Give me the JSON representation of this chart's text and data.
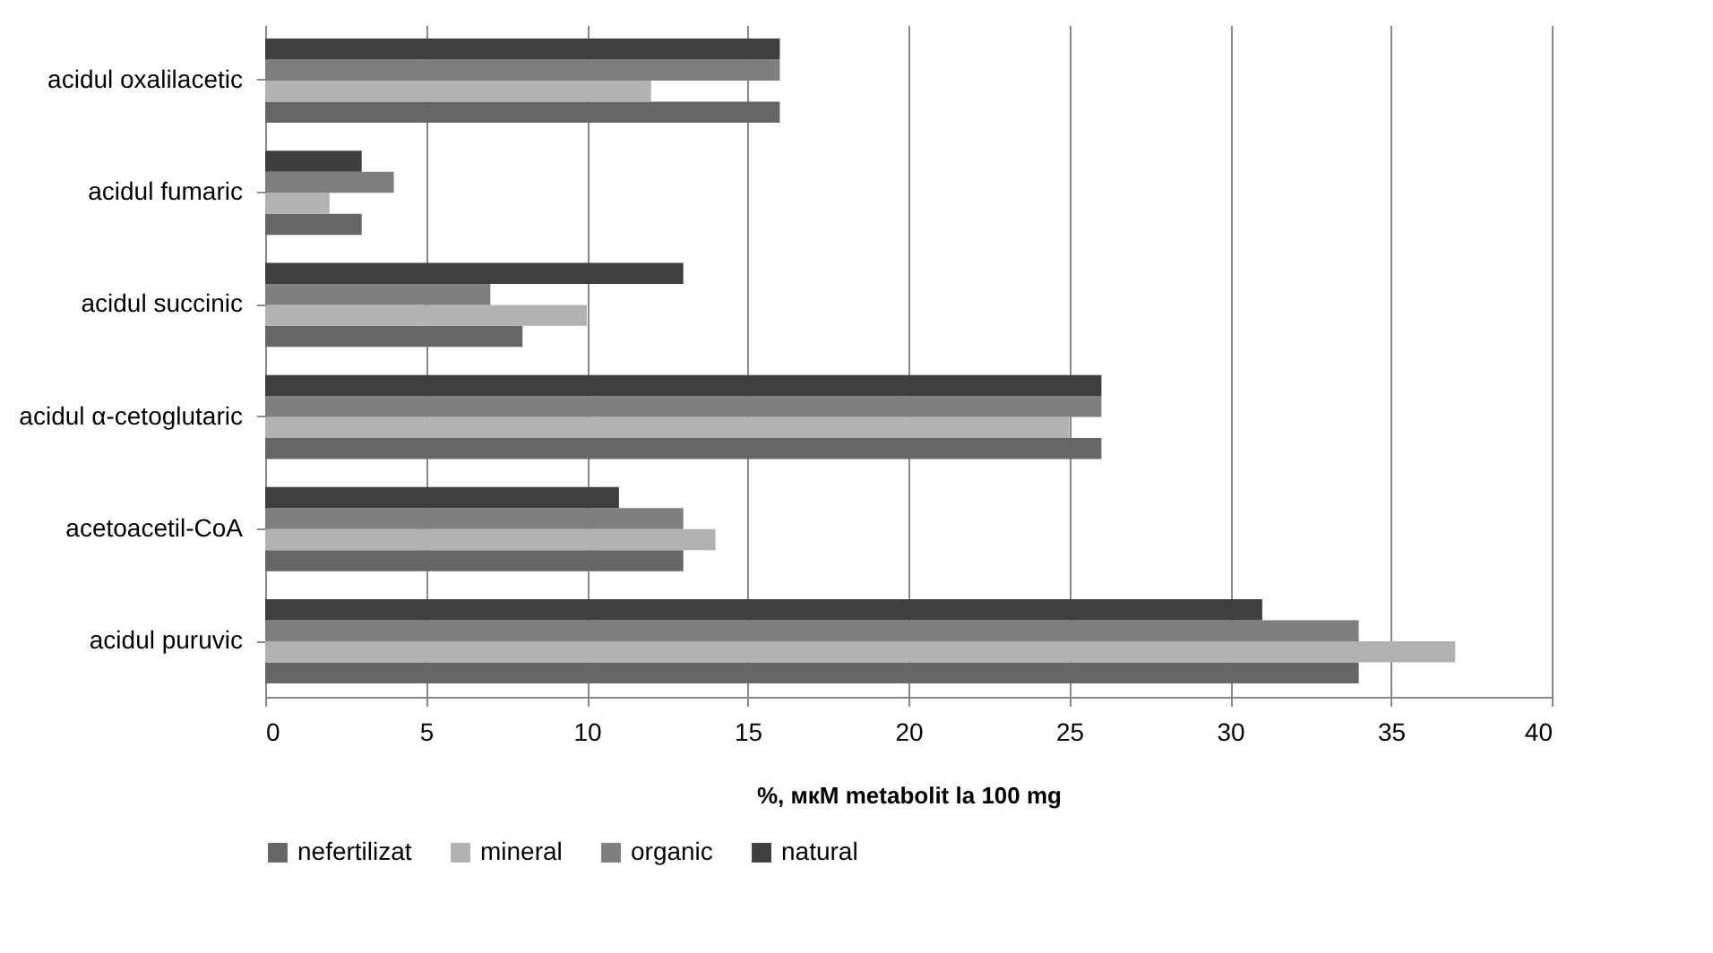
{
  "chart_data": {
    "type": "bar",
    "orientation": "horizontal",
    "xlabel": "%, мкМ  metabolit la  100 mg",
    "categories": [
      "acidul oxalilacetic",
      "acidul fumaric",
      "acidul succinic",
      "acidul α-cetoglutaric",
      "acetoacetil-CoA",
      "acidul puruvic"
    ],
    "series": [
      {
        "name": "nefertilizat",
        "color": "#666666",
        "values": [
          16,
          3,
          8,
          26,
          13,
          34
        ]
      },
      {
        "name": "mineral",
        "color": "#b2b2b2",
        "values": [
          12,
          2,
          10,
          25,
          14,
          37
        ]
      },
      {
        "name": "organic",
        "color": "#7f7f7f",
        "values": [
          16,
          4,
          7,
          26,
          13,
          34
        ]
      },
      {
        "name": "natural",
        "color": "#3f3f3f",
        "values": [
          16,
          3,
          13,
          26,
          11,
          31
        ]
      }
    ],
    "xlim": [
      0,
      40
    ],
    "xticks": [
      0,
      5,
      10,
      15,
      20,
      25,
      30,
      35,
      40
    ],
    "grid": "x",
    "legend": "bottom"
  }
}
